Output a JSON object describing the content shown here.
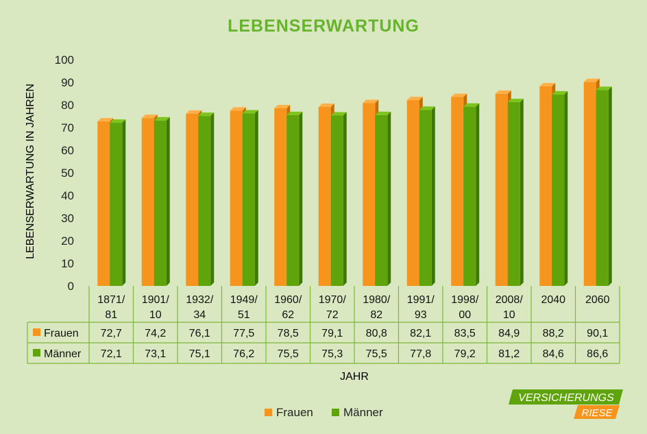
{
  "colors": {
    "background": "#d9e8c0",
    "frauen": "#f7941d",
    "frauen_top": "#ffb04a",
    "frauen_side": "#c46e00",
    "maenner": "#5ea40a",
    "maenner_top": "#7fc41e",
    "maenner_side": "#3f7905",
    "title": "#66b32e",
    "grid_line": "#7db83a",
    "text": "#000000"
  },
  "chart_data": {
    "type": "bar",
    "title": "LEBENSERWARTUNG",
    "xlabel": "JAHR",
    "ylabel": "LEBENSERWARTUNG IN JAHREN",
    "ylim": [
      0,
      100
    ],
    "yticks": [
      "0",
      "10",
      "20",
      "30",
      "40",
      "50",
      "60",
      "70",
      "80",
      "90",
      "100"
    ],
    "categories": [
      [
        "1871/",
        "81"
      ],
      [
        "1901/",
        "10"
      ],
      [
        "1932/",
        "34"
      ],
      [
        "1949/",
        "51"
      ],
      [
        "1960/",
        "62"
      ],
      [
        "1970/",
        "72"
      ],
      [
        "1980/",
        "82"
      ],
      [
        "1991/",
        "93"
      ],
      [
        "1998/",
        "00"
      ],
      [
        "2008/",
        "10"
      ],
      [
        "2040"
      ],
      [
        "2060"
      ]
    ],
    "series": [
      {
        "name": "Frauen",
        "values": [
          72.7,
          74.2,
          76.1,
          77.5,
          78.5,
          79.1,
          80.8,
          82.1,
          83.5,
          84.9,
          88.2,
          90.1
        ],
        "labels": [
          "72,7",
          "74,2",
          "76,1",
          "77,5",
          "78,5",
          "79,1",
          "80,8",
          "82,1",
          "83,5",
          "84,9",
          "88,2",
          "90,1"
        ]
      },
      {
        "name": "Männer",
        "values": [
          72.1,
          73.1,
          75.1,
          76.2,
          75.5,
          75.3,
          75.5,
          77.8,
          79.2,
          81.2,
          84.6,
          86.6
        ],
        "labels": [
          "72,1",
          "73,1",
          "75,1",
          "76,2",
          "75,5",
          "75,3",
          "75,5",
          "77,8",
          "79,2",
          "81,2",
          "84,6",
          "86,6"
        ]
      }
    ],
    "legend": {
      "position": "bottom",
      "entries": [
        "Frauen",
        "Männer"
      ]
    },
    "data_table": true
  },
  "logo": {
    "line1": "VERSICHERUNGS",
    "line2": "RIESE"
  }
}
